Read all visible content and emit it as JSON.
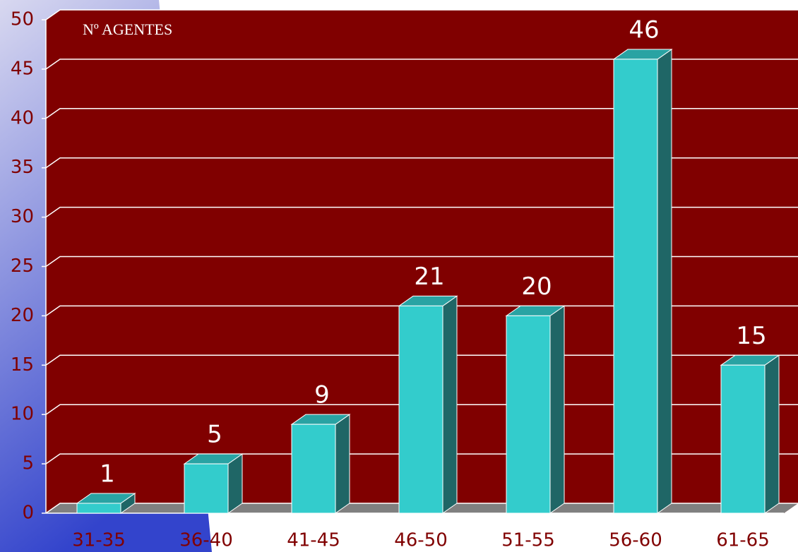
{
  "chart_data": {
    "type": "bar",
    "annotation": "Nº AGENTES",
    "categories": [
      "31-35",
      "36-40",
      "41-45",
      "46-50",
      "51-55",
      "56-60",
      "61-65"
    ],
    "values": [
      1,
      5,
      9,
      21,
      20,
      46,
      15
    ],
    "color": "#33cccc",
    "ylim": [
      0,
      50
    ],
    "yticks": [
      0,
      5,
      10,
      15,
      20,
      25,
      30,
      35,
      40,
      45,
      50
    ],
    "grid": true
  }
}
